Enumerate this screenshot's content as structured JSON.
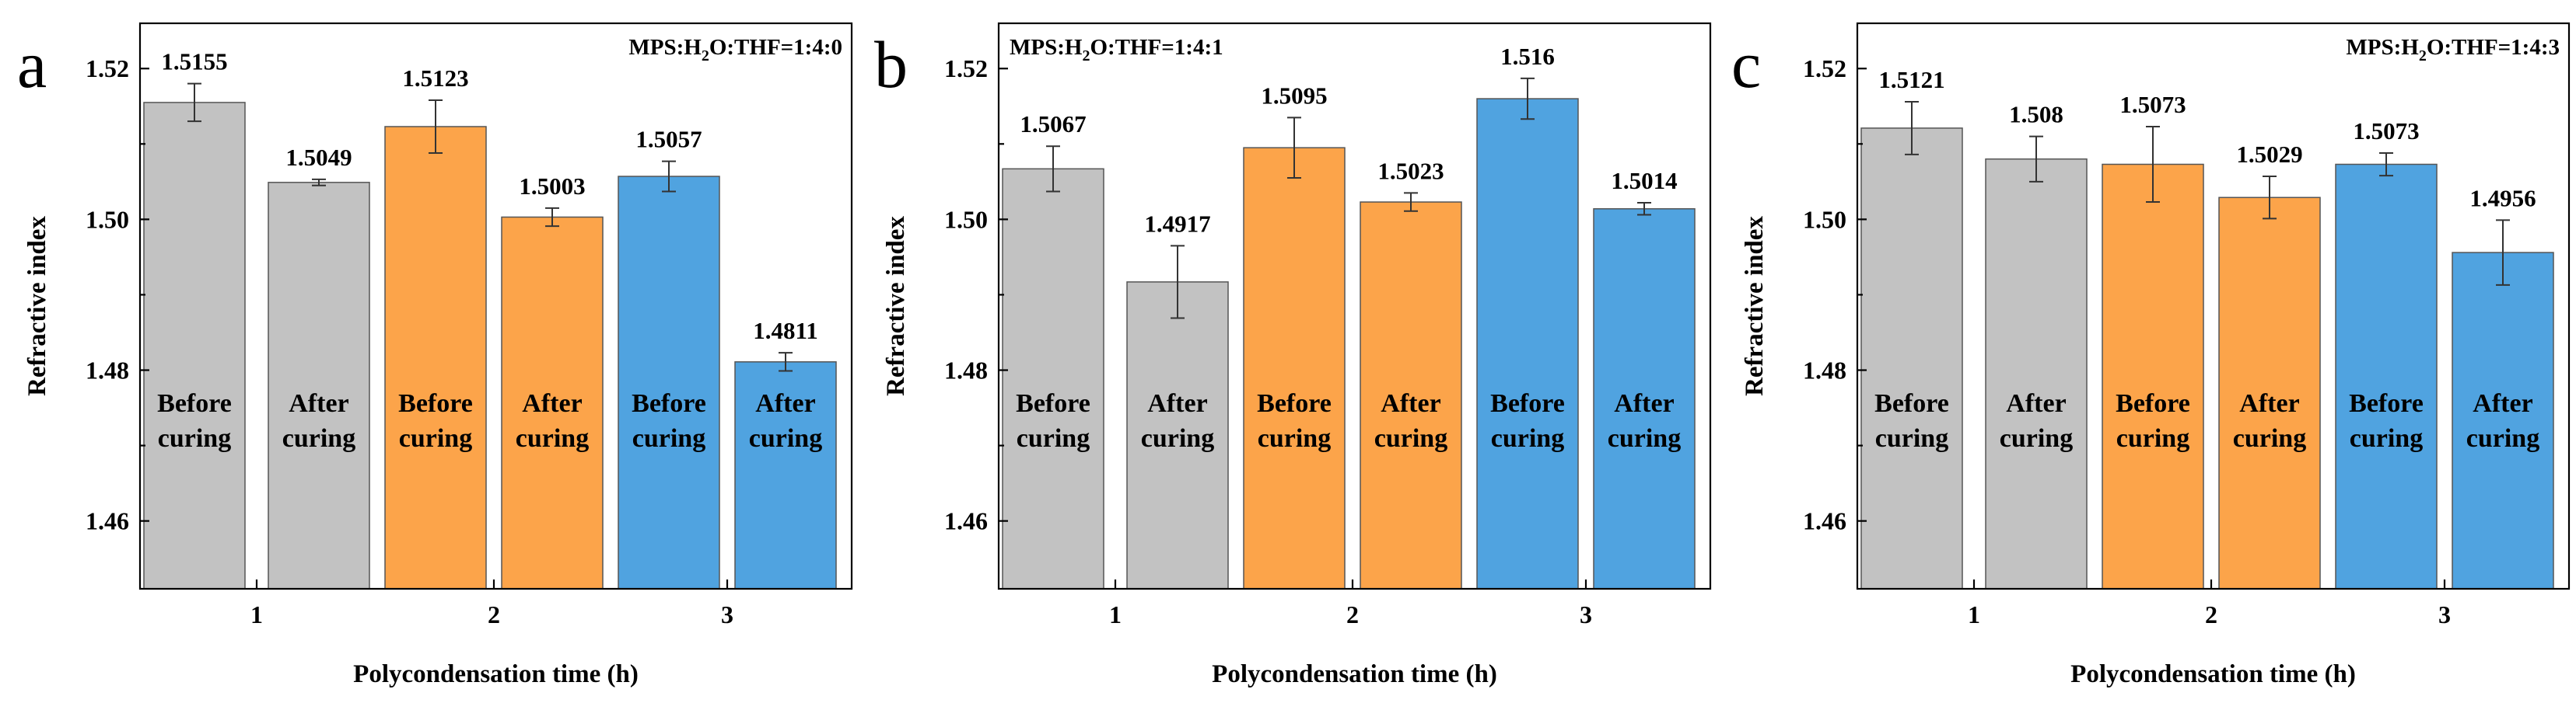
{
  "chart_data": [
    {
      "type": "bar",
      "panel": "a",
      "title": "MPS:H2O:THF=1:4:0",
      "xlabel": "Polycondensation time (h)",
      "ylabel": "Refractive index",
      "ylim": [
        1.451,
        1.526
      ],
      "yticks": [
        "1.46",
        "1.48",
        "1.50",
        "1.52"
      ],
      "xticks": [
        "1",
        "2",
        "3"
      ],
      "bars": [
        {
          "group": "1",
          "value": 1.5155,
          "error": 0.0025,
          "label_top": "Before",
          "label_bottom": "curing",
          "color": "#c2c2c2",
          "value_label": "1.5155"
        },
        {
          "group": "1",
          "value": 1.5049,
          "error": 0.0004,
          "label_top": "After",
          "label_bottom": "curing",
          "color": "#c2c2c2",
          "value_label": "1.5049"
        },
        {
          "group": "2",
          "value": 1.5123,
          "error": 0.0035,
          "label_top": "Before",
          "label_bottom": "curing",
          "color": "#fca44a",
          "value_label": "1.5123"
        },
        {
          "group": "2",
          "value": 1.5003,
          "error": 0.0012,
          "label_top": "After",
          "label_bottom": "curing",
          "color": "#fca44a",
          "value_label": "1.5003"
        },
        {
          "group": "3",
          "value": 1.5057,
          "error": 0.002,
          "label_top": "Before",
          "label_bottom": "curing",
          "color": "#50a3e0",
          "value_label": "1.5057"
        },
        {
          "group": "3",
          "value": 1.4811,
          "error": 0.0012,
          "label_top": "After",
          "label_bottom": "curing",
          "color": "#50a3e0",
          "value_label": "1.4811"
        }
      ]
    },
    {
      "type": "bar",
      "panel": "b",
      "title": "MPS:H2O:THF=1:4:1",
      "xlabel": "Polycondensation time (h)",
      "ylabel": "Refractive index",
      "ylim": [
        1.451,
        1.526
      ],
      "yticks": [
        "1.46",
        "1.48",
        "1.50",
        "1.52"
      ],
      "xticks": [
        "1",
        "2",
        "3"
      ],
      "bars": [
        {
          "group": "1",
          "value": 1.5067,
          "error": 0.003,
          "label_top": "Before",
          "label_bottom": "curing",
          "color": "#c2c2c2",
          "value_label": "1.5067"
        },
        {
          "group": "1",
          "value": 1.4917,
          "error": 0.0048,
          "label_top": "After",
          "label_bottom": "curing",
          "color": "#c2c2c2",
          "value_label": "1.4917"
        },
        {
          "group": "2",
          "value": 1.5095,
          "error": 0.004,
          "label_top": "Before",
          "label_bottom": "curing",
          "color": "#fca44a",
          "value_label": "1.5095"
        },
        {
          "group": "2",
          "value": 1.5023,
          "error": 0.0012,
          "label_top": "After",
          "label_bottom": "curing",
          "color": "#fca44a",
          "value_label": "1.5023"
        },
        {
          "group": "3",
          "value": 1.516,
          "error": 0.0027,
          "label_top": "Before",
          "label_bottom": "curing",
          "color": "#50a3e0",
          "value_label": "1.516"
        },
        {
          "group": "3",
          "value": 1.5014,
          "error": 0.0008,
          "label_top": "After",
          "label_bottom": "curing",
          "color": "#50a3e0",
          "value_label": "1.5014"
        }
      ]
    },
    {
      "type": "bar",
      "panel": "c",
      "title": "MPS:H2O:THF=1:4:3",
      "xlabel": "Polycondensation time (h)",
      "ylabel": "Refractive index",
      "ylim": [
        1.451,
        1.526
      ],
      "yticks": [
        "1.46",
        "1.48",
        "1.50",
        "1.52"
      ],
      "xticks": [
        "1",
        "2",
        "3"
      ],
      "bars": [
        {
          "group": "1",
          "value": 1.5121,
          "error": 0.0035,
          "label_top": "Before",
          "label_bottom": "curing",
          "color": "#c2c2c2",
          "value_label": "1.5121"
        },
        {
          "group": "1",
          "value": 1.508,
          "error": 0.003,
          "label_top": "After",
          "label_bottom": "curing",
          "color": "#c2c2c2",
          "value_label": "1.508"
        },
        {
          "group": "2",
          "value": 1.5073,
          "error": 0.005,
          "label_top": "Before",
          "label_bottom": "curing",
          "color": "#fca44a",
          "value_label": "1.5073"
        },
        {
          "group": "2",
          "value": 1.5029,
          "error": 0.0028,
          "label_top": "After",
          "label_bottom": "curing",
          "color": "#fca44a",
          "value_label": "1.5029"
        },
        {
          "group": "3",
          "value": 1.5073,
          "error": 0.0015,
          "label_top": "Before",
          "label_bottom": "curing",
          "color": "#50a3e0",
          "value_label": "1.5073"
        },
        {
          "group": "3",
          "value": 1.4956,
          "error": 0.0043,
          "label_top": "After",
          "label_bottom": "curing",
          "color": "#50a3e0",
          "value_label": "1.4956"
        }
      ]
    }
  ],
  "title_parts": [
    {
      "pre": "MPS:H",
      "sub": "2",
      "post": "O:THF=1:4:0"
    },
    {
      "pre": "MPS:H",
      "sub": "2",
      "post": "O:THF=1:4:1"
    },
    {
      "pre": "MPS:H",
      "sub": "2",
      "post": "O:THF=1:4:3"
    }
  ],
  "title_position": [
    "top-right",
    "top-left",
    "top-right"
  ],
  "colors": {
    "group1": "#c2c2c2",
    "group2": "#fca44a",
    "group3": "#50a3e0",
    "stroke": "#000000"
  }
}
